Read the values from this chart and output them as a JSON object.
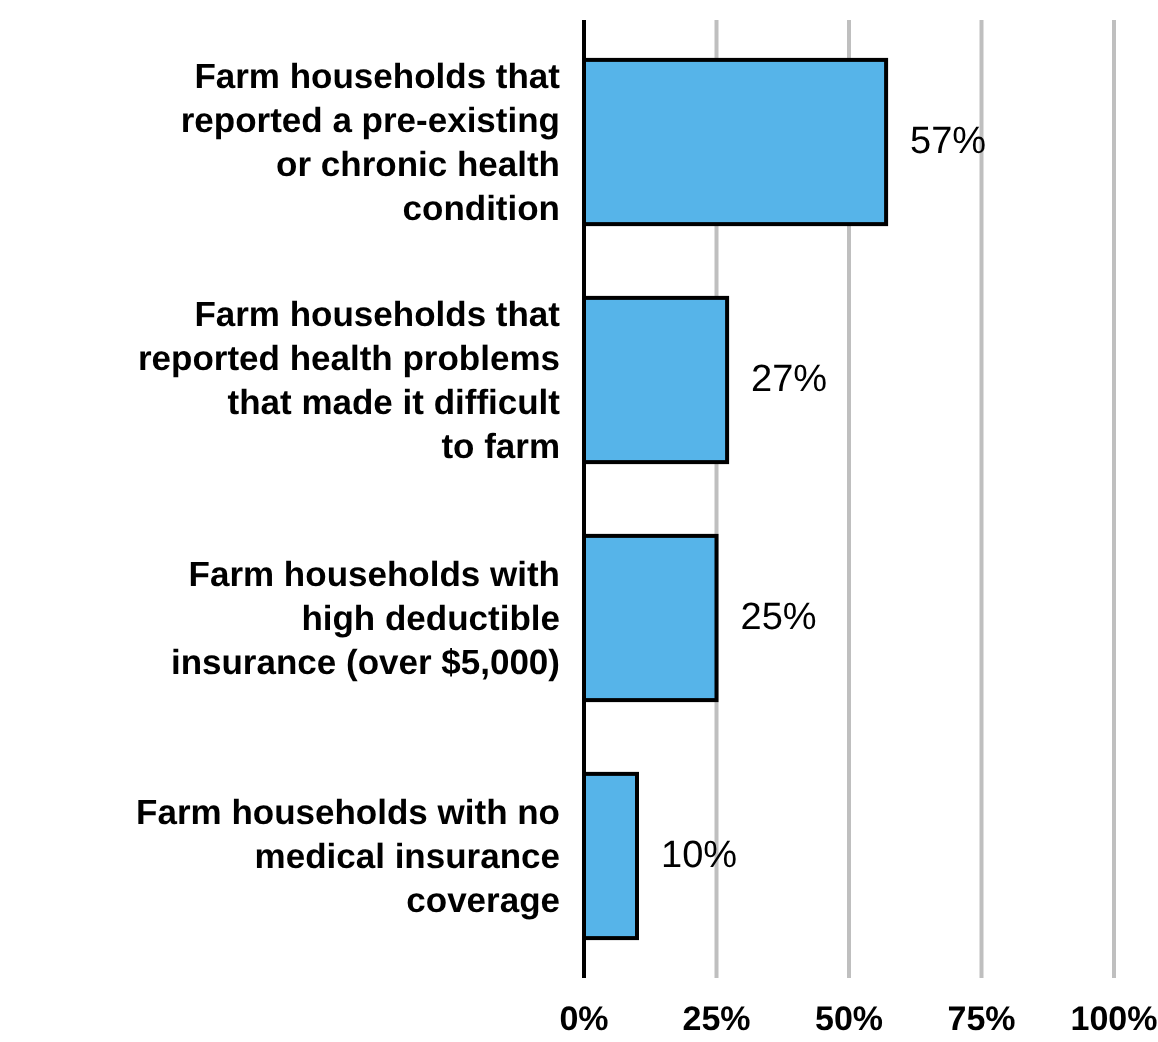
{
  "chart_data": {
    "type": "bar",
    "orientation": "horizontal",
    "categories": [
      "Farm households that reported a pre-existing or chronic health condition",
      "Farm households that reported health problems that made it difficult to farm",
      "Farm households with high deductible insurance (over $5,000)",
      "Farm households with no medical insurance coverage"
    ],
    "values": [
      57,
      27,
      25,
      10
    ],
    "color": "#56b4e9",
    "value_labels": [
      "57%",
      "27%",
      "25%",
      "10%"
    ],
    "xlim": [
      0,
      100
    ],
    "xticks": [
      {
        "value": 0,
        "label": "0%"
      },
      {
        "value": 25,
        "label": "25%"
      },
      {
        "value": 50,
        "label": "50%"
      },
      {
        "value": 75,
        "label": "75%"
      },
      {
        "value": 100,
        "label": "100%"
      }
    ],
    "grid": "x"
  }
}
